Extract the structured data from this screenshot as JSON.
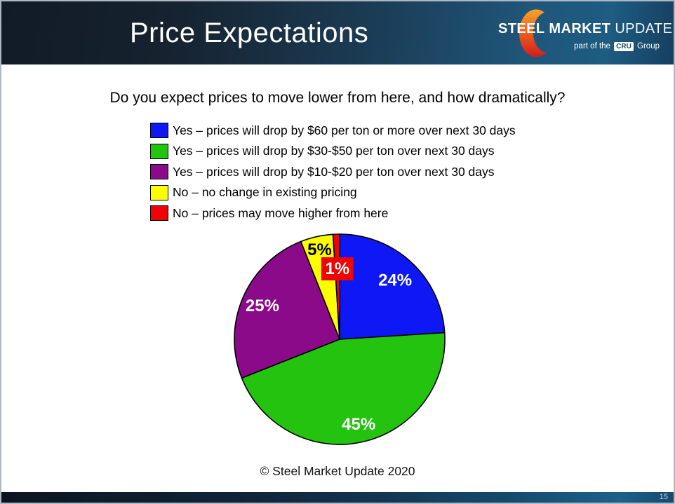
{
  "header": {
    "title": "Price Expectations",
    "logo": {
      "word1": "STEEL",
      "word2": "MARKET",
      "word3": "UPDATE",
      "tagline_prefix": "part of the",
      "badge": "CRU",
      "tagline_suffix": "Group",
      "crescent_top_color": "#f7a12b",
      "crescent_bottom_color": "#cf1d1d"
    }
  },
  "main": {
    "question": "Do you expect prices to move lower from here, and how dramatically?",
    "copyright": "© Steel Market Update 2020"
  },
  "chart_data": {
    "type": "pie",
    "title": "Do you expect prices to move lower from here, and how dramatically?",
    "start_angle_deg": 0,
    "direction": "clockwise",
    "outline_color": "#000000",
    "legend_position": "above",
    "slices": [
      {
        "label": "Yes – prices will drop by $60 per ton or more over next 30 days",
        "value": 24,
        "pct_label": "24%",
        "color": "#0d18f5",
        "label_color": "#ffffff",
        "label_radius": 0.77
      },
      {
        "label": "Yes – prices will drop by $30-$50 per ton over next 30 days",
        "value": 45,
        "pct_label": "45%",
        "color": "#23c30f",
        "label_color": "#ffffff",
        "label_radius": 0.83
      },
      {
        "label": "Yes – prices will drop by $10-$20 per ton over next 30 days",
        "value": 25,
        "pct_label": "25%",
        "color": "#8a0a8a",
        "label_color": "#ffffff",
        "label_radius": 0.8
      },
      {
        "label": "No – no change in existing pricing",
        "value": 5,
        "pct_label": "5%",
        "color": "#fdfd02",
        "label_color": "#000000",
        "label_radius": 0.87
      },
      {
        "label": "No – prices may move higher from here",
        "value": 1,
        "pct_label": "1%",
        "color": "#ee0404",
        "label_color": "#ffffff",
        "label_radius": 0.67,
        "label_boxed": true,
        "label_box_color": "#ee0404"
      }
    ]
  },
  "footer": {
    "page_number": "15"
  }
}
